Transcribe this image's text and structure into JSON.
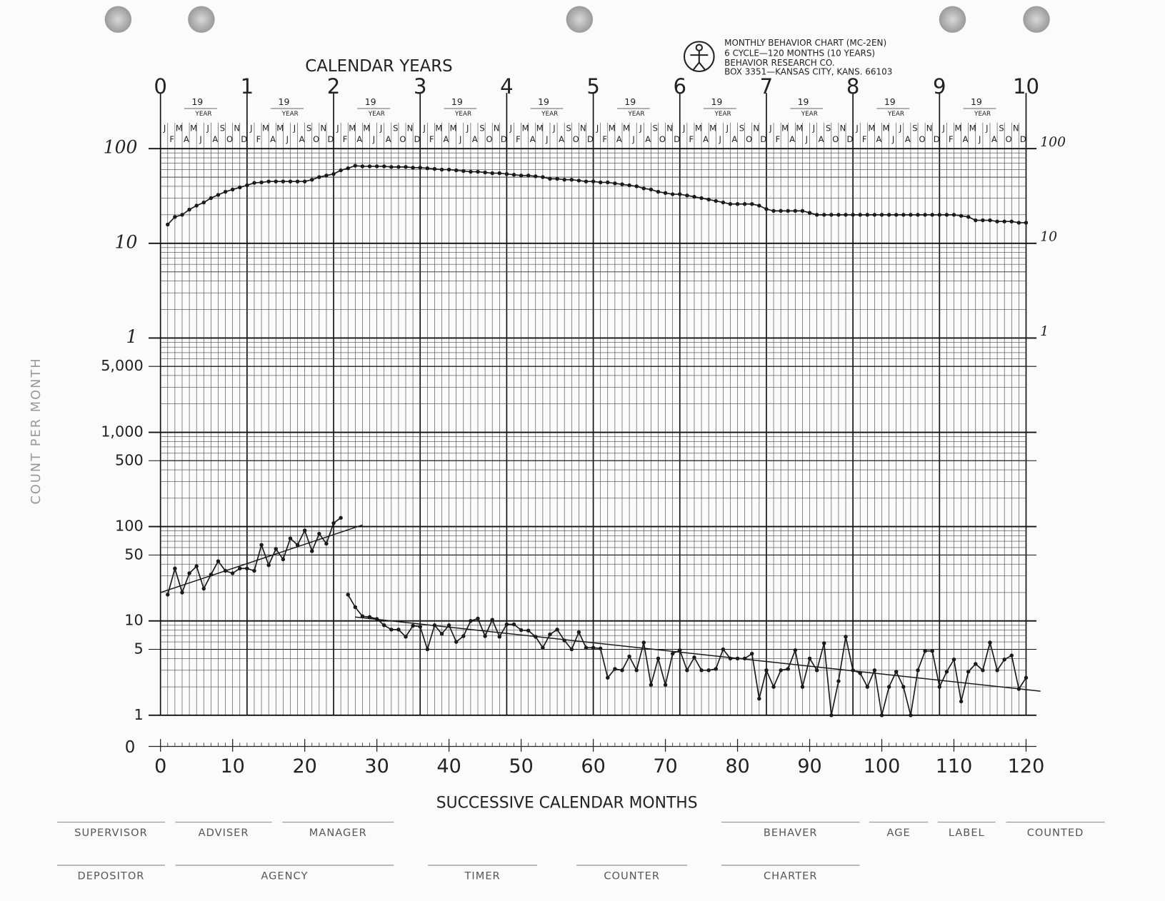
{
  "header": {
    "publisher_lines": [
      "MONTHLY BEHAVIOR CHART (MC-2EN)",
      "6 CYCLE—120 MONTHS (10 YEARS)",
      "BEHAVIOR RESEARCH CO.",
      "BOX 3351—KANSAS CITY, KANS. 66103"
    ]
  },
  "footer": {
    "fields_row1": [
      "SUPERVISOR",
      "ADVISER",
      "MANAGER",
      "BEHAVER",
      "AGE",
      "LABEL",
      "COUNTED"
    ],
    "fields_row2": [
      "DEPOSITOR",
      "AGENCY",
      "TIMER",
      "COUNTER",
      "CHARTER"
    ]
  },
  "chart_data": [
    {
      "type": "line",
      "x_label": "SUCCESSIVE CALENDAR MONTHS",
      "y_label": "COUNT PER MONTH",
      "log_y": true,
      "grid": true,
      "xlim": [
        0,
        120
      ],
      "xticks": [
        0,
        10,
        20,
        30,
        40,
        50,
        60,
        70,
        80,
        90,
        100,
        110,
        120
      ],
      "ylim": [
        1,
        10000
      ],
      "yticks": [
        1,
        5,
        10,
        50,
        100,
        500,
        {
          "value": 1000,
          "label": "1,000"
        },
        {
          "value": 5000,
          "label": "5,000"
        }
      ],
      "zero_label": "0",
      "x2_label": "CALENDAR YEARS",
      "x2lim": [
        0,
        10
      ],
      "x2ticks": [
        0,
        1,
        2,
        3,
        4,
        5,
        6,
        7,
        8,
        9,
        10
      ],
      "year_prefix": "19",
      "year_word": "YEAR",
      "month_letters_top": [
        "J",
        "M",
        "M",
        "J",
        "S",
        "N"
      ],
      "month_letters_bottom": [
        "F",
        "A",
        "J",
        "A",
        "O",
        "D"
      ],
      "x": [
        1,
        2,
        3,
        4,
        5,
        6,
        7,
        8,
        9,
        10,
        11,
        12,
        13,
        14,
        15,
        16,
        17,
        18,
        19,
        20,
        21,
        22,
        23,
        24,
        25,
        26,
        27,
        28,
        29,
        30,
        31,
        32,
        33,
        34,
        35,
        36,
        37,
        38,
        39,
        40,
        41,
        42,
        43,
        44,
        45,
        46,
        47,
        48,
        49,
        50,
        51,
        52,
        53,
        54,
        55,
        56,
        57,
        58,
        59,
        60,
        61,
        62,
        63,
        64,
        65,
        66,
        67,
        68,
        69,
        70,
        71,
        72,
        73,
        74,
        75,
        76,
        77,
        78,
        79,
        80,
        81,
        82,
        83,
        84,
        85,
        86,
        87,
        88,
        89,
        90,
        91,
        92,
        93,
        94,
        95,
        96,
        97,
        98,
        99,
        100,
        101,
        102,
        103,
        104,
        105,
        106,
        107,
        108,
        109,
        110,
        111,
        112,
        113,
        114,
        115,
        116,
        117,
        118,
        119,
        120
      ],
      "series": [
        {
          "color": "#1a1a1a",
          "values": [
            19,
            36,
            20,
            32,
            38,
            22,
            31,
            43,
            34,
            32,
            36,
            36,
            34,
            64,
            39,
            58,
            45,
            75,
            64,
            91,
            55,
            84,
            66,
            109,
            124,
            null,
            null,
            null,
            null,
            null,
            null,
            null,
            null,
            null,
            null,
            null,
            null,
            null,
            null,
            null,
            null,
            null,
            null,
            null,
            null,
            null,
            null,
            null,
            null,
            null,
            null,
            null,
            null,
            null,
            null,
            null,
            null,
            null,
            null,
            null,
            null,
            null,
            null,
            null,
            null,
            null,
            null,
            null,
            null,
            null,
            null,
            null,
            null,
            null,
            null,
            null,
            null,
            null,
            null,
            null,
            null,
            null,
            null,
            null,
            null,
            null,
            null,
            null,
            null,
            null,
            null,
            null,
            null,
            null,
            null,
            null,
            null,
            null,
            null,
            null,
            null,
            null,
            null,
            null,
            null,
            null,
            null,
            null,
            null,
            null,
            null,
            null,
            null,
            null,
            null,
            null,
            null,
            null,
            null,
            null
          ]
        },
        {
          "color": "#1a1a1a",
          "values": [
            null,
            null,
            null,
            null,
            null,
            null,
            null,
            null,
            null,
            null,
            null,
            null,
            null,
            null,
            null,
            null,
            null,
            null,
            null,
            null,
            null,
            null,
            null,
            null,
            null,
            19,
            14,
            11.2,
            11,
            10.5,
            9,
            8.1,
            8.1,
            6.8,
            8.9,
            8.7,
            5,
            9,
            7.3,
            9,
            6,
            6.9,
            10,
            10.6,
            6.9,
            10.3,
            6.8,
            9.2,
            9.2,
            8,
            7.9,
            6.8,
            5.2,
            7.2,
            8.1,
            6.2,
            5,
            7.6,
            5.2,
            5.2,
            5.1,
            2.5,
            3.1,
            3,
            4.2,
            3,
            5.9,
            2.1,
            4,
            2.1,
            4.5,
            4.9,
            3,
            4.1,
            3,
            3,
            3.1,
            5,
            4,
            4,
            4,
            4.5,
            1.5,
            3,
            2,
            3,
            3.1,
            4.9,
            2,
            4,
            3,
            5.8,
            1,
            2.3,
            6.8,
            3,
            2.8,
            2,
            3,
            1,
            2,
            2.9,
            2,
            1,
            3,
            4.8,
            4.8,
            2,
            2.9,
            3.9,
            1.4,
            2.9,
            3.5,
            3,
            5.9,
            3,
            3.9,
            4.3,
            1.9,
            2.5
          ]
        }
      ],
      "trend_lines": [
        {
          "color": "#1a1a1a",
          "x": [
            0,
            28
          ],
          "values": [
            20,
            104
          ]
        },
        {
          "color": "#1a1a1a",
          "x": [
            27,
            122
          ],
          "values": [
            11,
            1.8
          ]
        }
      ]
    },
    {
      "type": "line",
      "log_y": true,
      "grid": true,
      "xlim": [
        0,
        120
      ],
      "ylim": [
        1,
        100
      ],
      "yticks": [
        1,
        10,
        100
      ],
      "y2lim": [
        1,
        100
      ],
      "y2ticks": [
        1,
        10,
        100
      ],
      "x": [
        1,
        2,
        3,
        4,
        5,
        6,
        7,
        8,
        9,
        10,
        11,
        12,
        13,
        14,
        15,
        16,
        17,
        18,
        19,
        20,
        21,
        22,
        23,
        24,
        25,
        26,
        27,
        28,
        29,
        30,
        31,
        32,
        33,
        34,
        35,
        36,
        37,
        38,
        39,
        40,
        41,
        42,
        43,
        44,
        45,
        46,
        47,
        48,
        49,
        50,
        51,
        52,
        53,
        54,
        55,
        56,
        57,
        58,
        59,
        60,
        61,
        62,
        63,
        64,
        65,
        66,
        67,
        68,
        69,
        70,
        71,
        72,
        73,
        74,
        75,
        76,
        77,
        78,
        79,
        80,
        81,
        82,
        83,
        84,
        85,
        86,
        87,
        88,
        89,
        90,
        91,
        92,
        93,
        94,
        95,
        96,
        97,
        98,
        99,
        100,
        101,
        102,
        103,
        104,
        105,
        106,
        107,
        108,
        109,
        110,
        111,
        112,
        113,
        114,
        115,
        116,
        117,
        118,
        119,
        120
      ],
      "series": [
        {
          "color": "#1a1a1a",
          "values": [
            15.8,
            19,
            20,
            22.7,
            25,
            27,
            30,
            32.5,
            35,
            37,
            39,
            41,
            43.5,
            44,
            45,
            45,
            45,
            45,
            45,
            45,
            47,
            50,
            52,
            54,
            59,
            62,
            66,
            65,
            65,
            65,
            65,
            64,
            64,
            64,
            63,
            63,
            62,
            61,
            60,
            60,
            59,
            58,
            57,
            57,
            56,
            55,
            55,
            54,
            53,
            52,
            52,
            51,
            50,
            48,
            48,
            47,
            47,
            46,
            45,
            45,
            44,
            44,
            43,
            42,
            41,
            40,
            38,
            37,
            35,
            34,
            33,
            33,
            32,
            31,
            30,
            29,
            28,
            27,
            26,
            26,
            26,
            26,
            25,
            23,
            22,
            22,
            22,
            22,
            22,
            21,
            20,
            20,
            20,
            20,
            20,
            20,
            20,
            20,
            20,
            20,
            20,
            20,
            20,
            20,
            20,
            20,
            20,
            20,
            20,
            20,
            19.5,
            19,
            17.5,
            17.5,
            17.5,
            17,
            17,
            17,
            16.5,
            16.5
          ]
        }
      ]
    }
  ]
}
